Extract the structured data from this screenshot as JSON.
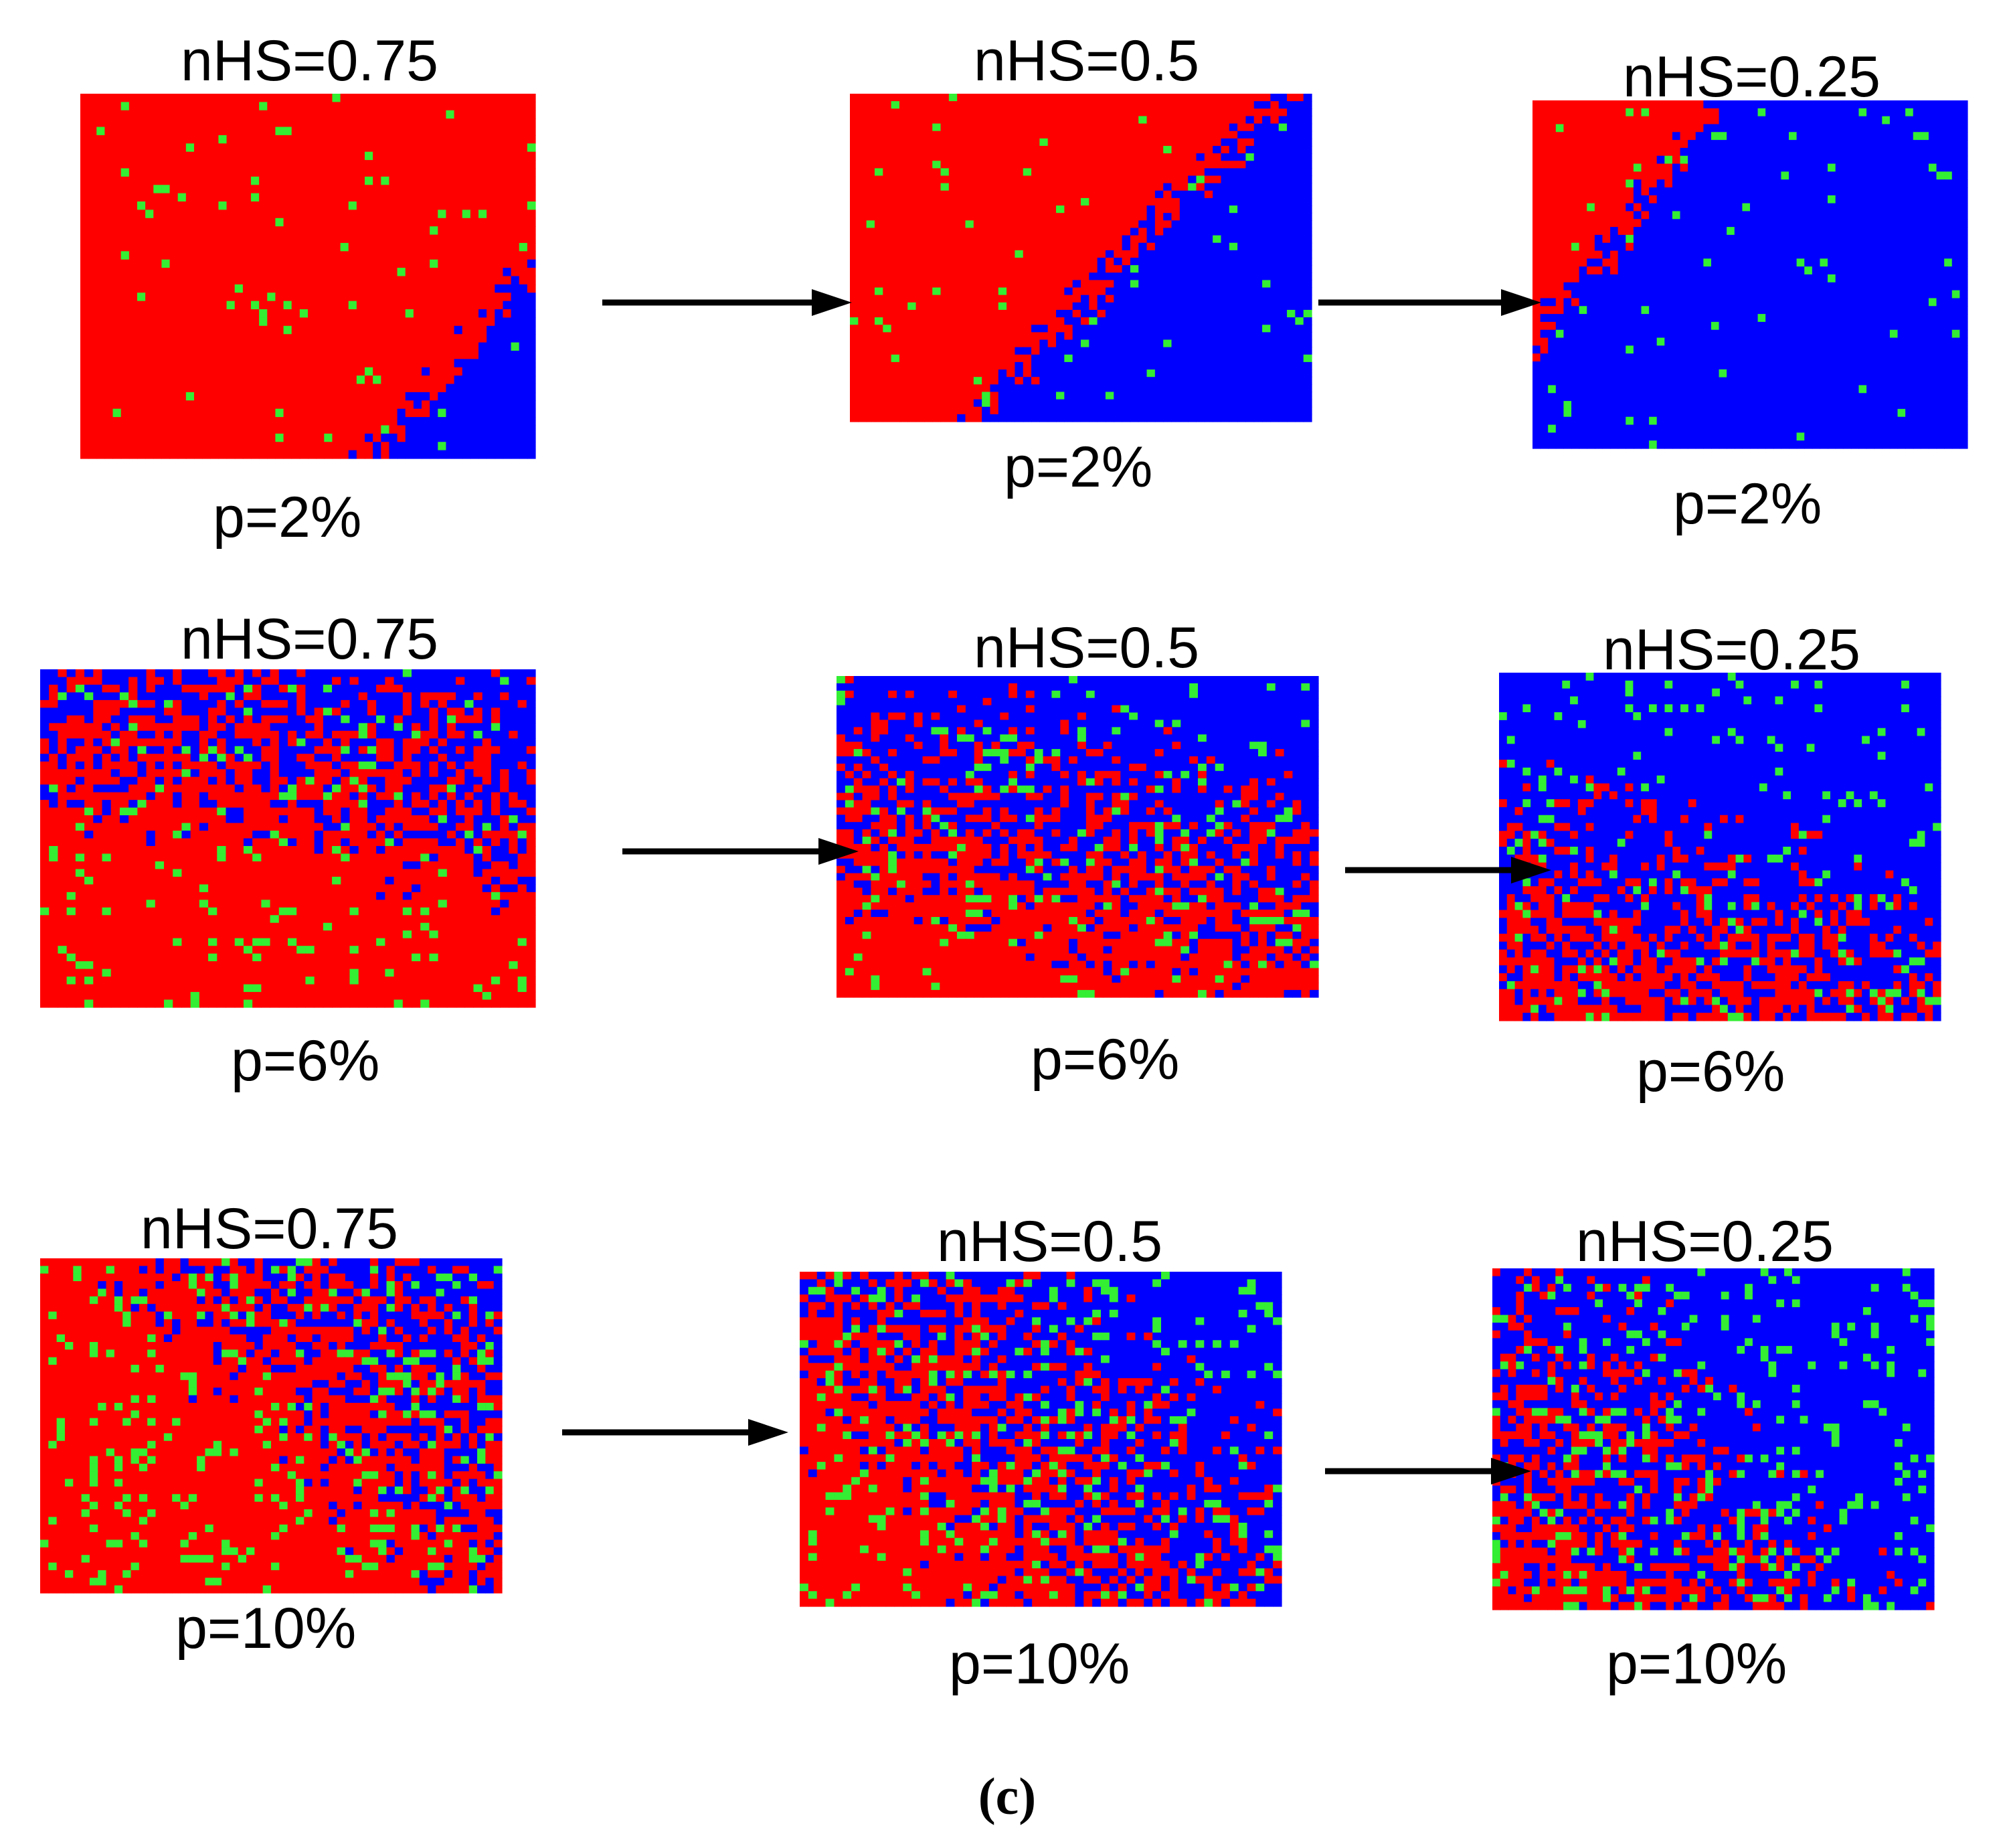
{
  "colors": {
    "phase_a": "#ff0000",
    "phase_b": "#0000ff",
    "defect": "#33ee33",
    "arrow": "#000000"
  },
  "rows": [
    {
      "panels": [
        {
          "top_label": "nHS=0.75",
          "bottom_label": "p=2%",
          "pattern": "split-diag-left",
          "red_fraction": 0.78,
          "defect_density": 0.02
        },
        {
          "top_label": "nHS=0.5",
          "bottom_label": "p=2%",
          "pattern": "split-diag-left",
          "red_fraction": 0.55,
          "defect_density": 0.02
        },
        {
          "top_label": "nHS=0.25",
          "bottom_label": "p=2%",
          "pattern": "split-diag-left",
          "red_fraction": 0.26,
          "defect_density": 0.02
        }
      ]
    },
    {
      "panels": [
        {
          "top_label": "nHS=0.75",
          "bottom_label": "p=6%",
          "pattern": "mixed-top-blue",
          "red_fraction": 0.72,
          "defect_density": 0.06
        },
        {
          "top_label": "nHS=0.5",
          "bottom_label": "p=6%",
          "pattern": "mixed-top-blue",
          "red_fraction": 0.5,
          "defect_density": 0.06
        },
        {
          "top_label": "nHS=0.25",
          "bottom_label": "p=6%",
          "pattern": "mixed-top-blue",
          "red_fraction": 0.28,
          "defect_density": 0.06
        }
      ]
    },
    {
      "panels": [
        {
          "top_label": "nHS=0.75",
          "bottom_label": "p=10%",
          "pattern": "mixed-right-blue",
          "red_fraction": 0.75,
          "defect_density": 0.1
        },
        {
          "top_label": "nHS=0.5",
          "bottom_label": "p=10%",
          "pattern": "mixed-right-blue",
          "red_fraction": 0.5,
          "defect_density": 0.1
        },
        {
          "top_label": "nHS=0.25",
          "bottom_label": "p=10%",
          "pattern": "mixed-right-blue",
          "red_fraction": 0.28,
          "defect_density": 0.1
        }
      ]
    }
  ],
  "caption": "(c)"
}
